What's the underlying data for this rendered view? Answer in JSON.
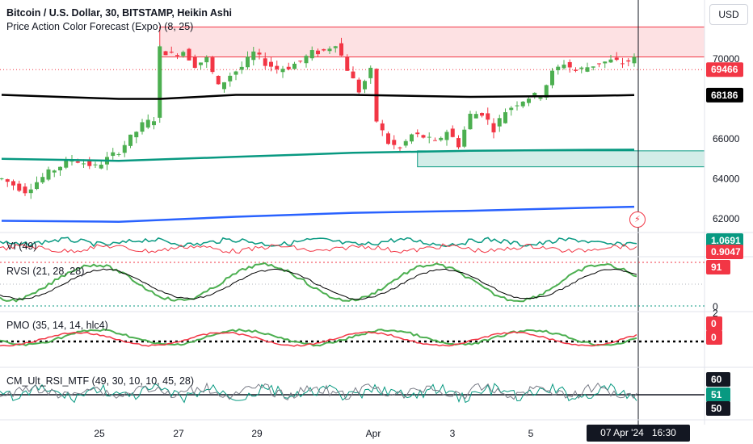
{
  "header": {
    "title": "Bitcoin / U.S. Dollar, 30, BITSTAMP, Heikin Ashi",
    "indicator": "Price Action Color Forecast (Expo) (8, 25)",
    "currency_button": "USD"
  },
  "colors": {
    "bull": "#22ab94",
    "bull_bright": "#4caf50",
    "bear": "#f23645",
    "zone_red": "#f23645",
    "ma_black": "#000000",
    "ma_green": "#089981",
    "ma_blue": "#2962ff"
  },
  "panes": [
    {
      "label": "VI (49)",
      "values": [
        "1.0691",
        "0.9047"
      ]
    },
    {
      "label": "RVSI (21, 28, 28)",
      "values": [
        "91"
      ],
      "axis_labels": [
        "0"
      ]
    },
    {
      "label": "PMO (35, 14, 14, hlc4)",
      "values": [
        "0",
        "0"
      ],
      "axis_labels": [
        "2"
      ]
    },
    {
      "label": "CM_Ult_RSI_MTF (49, 30, 10, 10, 45, 28)",
      "values": [
        "60",
        "51",
        "50"
      ]
    }
  ],
  "crosshair": {
    "date_label": "07 Apr '24",
    "time_label": "16:30"
  },
  "chart_data": {
    "type": "candlestick",
    "series_type": "Heikin Ashi",
    "symbol": "BTCUSD",
    "timeframe": "30",
    "x_ticks": [
      "25",
      "27",
      "29",
      "Apr",
      "3",
      "5"
    ],
    "y_ticks": [
      70000,
      66000,
      64000,
      62000
    ],
    "price_range": [
      61600,
      72000
    ],
    "last_price": "69466",
    "ma_values": {
      "ma_black": "68186"
    },
    "close_path": [
      [
        0,
        64000
      ],
      [
        4,
        63400
      ],
      [
        8,
        64300
      ],
      [
        12,
        65000
      ],
      [
        16,
        64600
      ],
      [
        20,
        65400
      ],
      [
        24,
        66700
      ],
      [
        26,
        67000
      ],
      [
        27,
        70500
      ],
      [
        29,
        70200
      ],
      [
        31,
        70400
      ],
      [
        33,
        69700
      ],
      [
        35,
        70000
      ],
      [
        37,
        68600
      ],
      [
        39,
        69200
      ],
      [
        41,
        69600
      ],
      [
        43,
        70300
      ],
      [
        45,
        69800
      ],
      [
        47,
        69500
      ],
      [
        49,
        69600
      ],
      [
        51,
        69900
      ],
      [
        53,
        70300
      ],
      [
        55,
        70400
      ],
      [
        57,
        70800
      ],
      [
        59,
        69500
      ],
      [
        61,
        68400
      ],
      [
        63,
        69400
      ],
      [
        64,
        66900
      ],
      [
        66,
        65800
      ],
      [
        68,
        65500
      ],
      [
        70,
        66200
      ],
      [
        72,
        66100
      ],
      [
        74,
        65800
      ],
      [
        76,
        66400
      ],
      [
        78,
        65700
      ],
      [
        80,
        67200
      ],
      [
        82,
        67300
      ],
      [
        84,
        66500
      ],
      [
        86,
        67400
      ],
      [
        88,
        67800
      ],
      [
        90,
        68100
      ],
      [
        92,
        68200
      ],
      [
        94,
        69300
      ],
      [
        96,
        69800
      ],
      [
        98,
        69400
      ],
      [
        100,
        69600
      ],
      [
        102,
        69800
      ],
      [
        104,
        69900
      ],
      [
        106,
        69800
      ],
      [
        108,
        70000
      ]
    ],
    "moving_averages": [
      {
        "key": "ma_black",
        "values": [
          [
            0,
            68200
          ],
          [
            20,
            68000
          ],
          [
            27,
            68000
          ],
          [
            40,
            68200
          ],
          [
            60,
            68200
          ],
          [
            80,
            68100
          ],
          [
            100,
            68150
          ],
          [
            108,
            68190
          ]
        ]
      },
      {
        "key": "ma_green",
        "values": [
          [
            0,
            65000
          ],
          [
            20,
            64900
          ],
          [
            40,
            65100
          ],
          [
            60,
            65300
          ],
          [
            80,
            65400
          ],
          [
            100,
            65450
          ],
          [
            108,
            65460
          ]
        ]
      },
      {
        "key": "ma_blue",
        "values": [
          [
            0,
            61900
          ],
          [
            20,
            61850
          ],
          [
            40,
            62100
          ],
          [
            60,
            62300
          ],
          [
            80,
            62400
          ],
          [
            100,
            62550
          ],
          [
            108,
            62600
          ]
        ]
      }
    ],
    "zones": [
      {
        "type": "supply",
        "x_start": 27,
        "top": 71600,
        "bottom": 70100
      },
      {
        "type": "demand",
        "x_start": 71,
        "top": 65400,
        "bottom": 64600
      }
    ]
  }
}
